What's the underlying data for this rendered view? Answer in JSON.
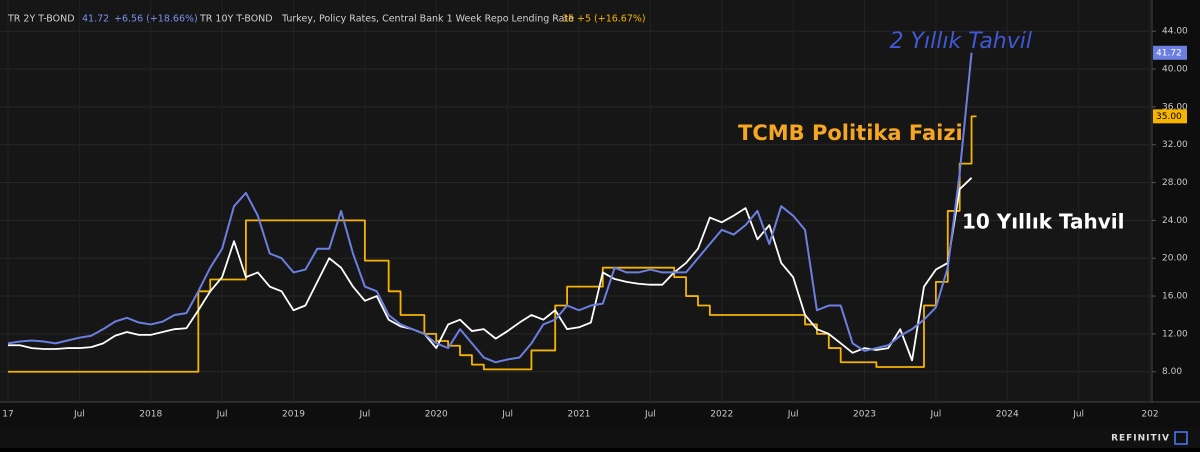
{
  "chart_data": {
    "type": "line",
    "x": [
      "2017-01",
      "2017-02",
      "2017-03",
      "2017-04",
      "2017-05",
      "2017-06",
      "2017-07",
      "2017-08",
      "2017-09",
      "2017-10",
      "2017-11",
      "2017-12",
      "2018-01",
      "2018-02",
      "2018-03",
      "2018-04",
      "2018-05",
      "2018-06",
      "2018-07",
      "2018-08",
      "2018-09",
      "2018-10",
      "2018-11",
      "2018-12",
      "2019-01",
      "2019-02",
      "2019-03",
      "2019-04",
      "2019-05",
      "2019-06",
      "2019-07",
      "2019-08",
      "2019-09",
      "2019-10",
      "2019-11",
      "2019-12",
      "2020-01",
      "2020-02",
      "2020-03",
      "2020-04",
      "2020-05",
      "2020-06",
      "2020-07",
      "2020-08",
      "2020-09",
      "2020-10",
      "2020-11",
      "2020-12",
      "2021-01",
      "2021-02",
      "2021-03",
      "2021-04",
      "2021-05",
      "2021-06",
      "2021-07",
      "2021-08",
      "2021-09",
      "2021-10",
      "2021-11",
      "2021-12",
      "2022-01",
      "2022-02",
      "2022-03",
      "2022-04",
      "2022-05",
      "2022-06",
      "2022-07",
      "2022-08",
      "2022-09",
      "2022-10",
      "2022-11",
      "2022-12",
      "2023-01",
      "2023-02",
      "2023-03",
      "2023-04",
      "2023-05",
      "2023-06",
      "2023-07",
      "2023-08",
      "2023-09",
      "2023-10"
    ],
    "series": [
      {
        "name": "TR 2Y T-BOND",
        "color": "#6b7fe0",
        "change_label": "+6.56 (+18.66%)",
        "values": [
          11.0,
          11.2,
          11.3,
          11.2,
          11.0,
          11.3,
          11.6,
          11.8,
          12.5,
          13.3,
          13.7,
          13.2,
          13.0,
          13.3,
          14.0,
          14.2,
          16.5,
          19.0,
          21.0,
          25.5,
          26.9,
          24.5,
          20.5,
          20.0,
          18.5,
          18.8,
          21.0,
          21.0,
          25.0,
          20.5,
          17.0,
          16.5,
          14.0,
          13.0,
          12.5,
          12.0,
          11.0,
          10.5,
          12.5,
          11.0,
          9.5,
          9.0,
          9.3,
          9.5,
          11.0,
          13.0,
          13.5,
          15.0,
          14.5,
          15.0,
          15.2,
          19.0,
          18.5,
          18.5,
          18.8,
          18.5,
          18.5,
          18.5,
          20.0,
          21.5,
          23.0,
          22.5,
          23.5,
          25.0,
          21.5,
          25.5,
          24.5,
          23.0,
          14.5,
          15.0,
          15.0,
          11.0,
          10.2,
          10.5,
          10.8,
          11.8,
          12.5,
          13.5,
          14.8,
          19.0,
          29.0,
          41.72
        ]
      },
      {
        "name": "TR 10Y T-BOND",
        "color": "#ffffff",
        "values": [
          10.8,
          10.8,
          10.5,
          10.4,
          10.4,
          10.5,
          10.5,
          10.6,
          11.0,
          11.8,
          12.2,
          11.9,
          11.9,
          12.2,
          12.5,
          12.6,
          14.5,
          16.5,
          18.0,
          21.8,
          18.0,
          18.5,
          17.0,
          16.5,
          14.5,
          15.0,
          17.5,
          20.0,
          19.0,
          17.0,
          15.5,
          16.0,
          13.5,
          12.8,
          12.5,
          12.0,
          10.5,
          13.0,
          13.5,
          12.3,
          12.5,
          11.5,
          12.3,
          13.2,
          14.0,
          13.5,
          14.5,
          12.5,
          12.7,
          13.2,
          18.5,
          17.8,
          17.5,
          17.3,
          17.2,
          17.2,
          18.5,
          19.5,
          21.0,
          24.3,
          23.8,
          24.5,
          25.3,
          22.0,
          23.5,
          19.5,
          18.0,
          14.0,
          12.5,
          12.0,
          11.0,
          10.0,
          10.5,
          10.3,
          10.5,
          12.5,
          9.2,
          17.0,
          18.8,
          19.5,
          27.3,
          28.5
        ]
      },
      {
        "name": "Turkey, Policy Rates, Central Bank 1 Week Repo Lending Rate",
        "color": "#f5b400",
        "step": true,
        "change_label": "+5 (+16.67%)",
        "tag_label": "35.00",
        "x": [
          "2017-01",
          "2018-05",
          "2018-06",
          "2018-09",
          "2019-07",
          "2019-09",
          "2019-10",
          "2019-12",
          "2020-01",
          "2020-02",
          "2020-03",
          "2020-04",
          "2020-05",
          "2020-09",
          "2020-11",
          "2020-12",
          "2021-03",
          "2021-09",
          "2021-10",
          "2021-11",
          "2021-12",
          "2022-08",
          "2022-09",
          "2022-10",
          "2022-11",
          "2023-02",
          "2023-06",
          "2023-07",
          "2023-08",
          "2023-09",
          "2023-10"
        ],
        "values": [
          8,
          16.5,
          17.75,
          24,
          19.75,
          16.5,
          14,
          12,
          11.25,
          10.75,
          9.75,
          8.75,
          8.25,
          10.25,
          15,
          17,
          19,
          18,
          16,
          15,
          14,
          13,
          12,
          10.5,
          9,
          8.5,
          15,
          17.5,
          25,
          30,
          35
        ]
      }
    ],
    "annotations": [
      "2 Yıllık Tahvil",
      "TCMB Politika Faizi",
      "10 Yıllık Tahvil"
    ],
    "source": "REFINITIV",
    "xlim": [
      "2017-01",
      "2025-01"
    ],
    "xticks": [
      {
        "value": "2017-01",
        "label": "17"
      },
      {
        "value": "2017-07",
        "label": "Jul"
      },
      {
        "value": "2018-01",
        "label": "2018"
      },
      {
        "value": "2018-07",
        "label": "Jul"
      },
      {
        "value": "2019-01",
        "label": "2019"
      },
      {
        "value": "2019-07",
        "label": "Jul"
      },
      {
        "value": "2020-01",
        "label": "2020"
      },
      {
        "value": "2020-07",
        "label": "Jul"
      },
      {
        "value": "2021-01",
        "label": "2021"
      },
      {
        "value": "2021-07",
        "label": "Jul"
      },
      {
        "value": "2022-01",
        "label": "2022"
      },
      {
        "value": "2022-07",
        "label": "Jul"
      },
      {
        "value": "2023-01",
        "label": "2023"
      },
      {
        "value": "2023-07",
        "label": "Jul"
      },
      {
        "value": "2024-01",
        "label": "2024"
      },
      {
        "value": "2024-07",
        "label": "Jul"
      },
      {
        "value": "2025-01",
        "label": "202"
      }
    ],
    "ylim": [
      4.8,
      47.3
    ],
    "yticks": [
      {
        "value": 8,
        "label": "8.00"
      },
      {
        "value": 12,
        "label": "12.00"
      },
      {
        "value": 16,
        "label": "16.00"
      },
      {
        "value": 20,
        "label": "20.00"
      },
      {
        "value": 24,
        "label": "24.00"
      },
      {
        "value": 28,
        "label": "28.00"
      },
      {
        "value": 32,
        "label": "32.00"
      },
      {
        "value": 36,
        "label": "36.00"
      },
      {
        "value": 40,
        "label": "40.00"
      },
      {
        "value": 44,
        "label": "44.00"
      }
    ],
    "grid": true
  }
}
